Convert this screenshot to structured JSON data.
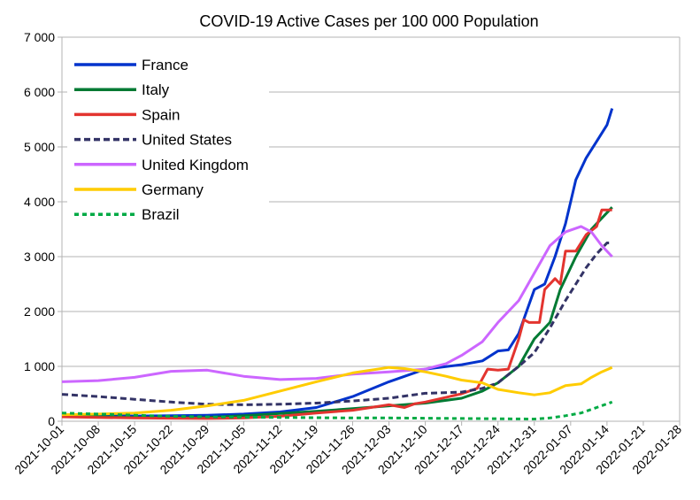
{
  "chart_data": {
    "type": "line",
    "title": "COVID-19 Active Cases per 100 000 Population",
    "xlabel": "",
    "ylabel": "",
    "ylim": [
      0,
      7000
    ],
    "yticks": [
      0,
      1000,
      2000,
      3000,
      4000,
      5000,
      6000,
      7000
    ],
    "ytick_labels": [
      "0",
      "1 000",
      "2 000",
      "3 000",
      "4 000",
      "5 000",
      "6 000",
      "7 000"
    ],
    "xlim": [
      "2021-10-01",
      "2022-01-28"
    ],
    "xtick_labels": [
      "2021-10-01",
      "2021-10-08",
      "2021-10-15",
      "2021-10-22",
      "2021-10-29",
      "2021-11-05",
      "2021-11-12",
      "2021-11-19",
      "2021-11-26",
      "2021-12-03",
      "2021-12-10",
      "2021-12-17",
      "2021-12-24",
      "2021-12-31",
      "2022-01-07",
      "2022-01-14",
      "2022-01-21",
      "2022-01-28"
    ],
    "grid": "horizontal",
    "legend": "top-left",
    "series": [
      {
        "name": "France",
        "color": "#0033cc",
        "style": "solid",
        "points": [
          [
            "2021-10-01",
            100
          ],
          [
            "2021-10-08",
            100
          ],
          [
            "2021-10-15",
            95
          ],
          [
            "2021-10-22",
            100
          ],
          [
            "2021-10-29",
            110
          ],
          [
            "2021-11-05",
            130
          ],
          [
            "2021-11-12",
            170
          ],
          [
            "2021-11-19",
            250
          ],
          [
            "2021-11-26",
            450
          ],
          [
            "2021-12-03",
            720
          ],
          [
            "2021-12-10",
            950
          ],
          [
            "2021-12-17",
            1030
          ],
          [
            "2021-12-21",
            1100
          ],
          [
            "2021-12-24",
            1280
          ],
          [
            "2021-12-26",
            1300
          ],
          [
            "2021-12-28",
            1600
          ],
          [
            "2021-12-31",
            2400
          ],
          [
            "2022-01-02",
            2500
          ],
          [
            "2022-01-04",
            3000
          ],
          [
            "2022-01-06",
            3600
          ],
          [
            "2022-01-08",
            4400
          ],
          [
            "2022-01-10",
            4800
          ],
          [
            "2022-01-12",
            5100
          ],
          [
            "2022-01-14",
            5400
          ],
          [
            "2022-01-15",
            5700
          ]
        ]
      },
      {
        "name": "Italy",
        "color": "#007a33",
        "style": "solid",
        "points": [
          [
            "2021-10-01",
            110
          ],
          [
            "2021-10-08",
            80
          ],
          [
            "2021-10-15",
            70
          ],
          [
            "2021-10-22",
            65
          ],
          [
            "2021-10-29",
            70
          ],
          [
            "2021-11-05",
            100
          ],
          [
            "2021-11-12",
            140
          ],
          [
            "2021-11-19",
            180
          ],
          [
            "2021-11-26",
            230
          ],
          [
            "2021-12-03",
            280
          ],
          [
            "2021-12-10",
            330
          ],
          [
            "2021-12-17",
            420
          ],
          [
            "2021-12-21",
            550
          ],
          [
            "2021-12-24",
            700
          ],
          [
            "2021-12-28",
            1000
          ],
          [
            "2021-12-31",
            1500
          ],
          [
            "2022-01-03",
            1800
          ],
          [
            "2022-01-05",
            2400
          ],
          [
            "2022-01-08",
            3000
          ],
          [
            "2022-01-11",
            3500
          ],
          [
            "2022-01-15",
            3900
          ]
        ]
      },
      {
        "name": "Spain",
        "color": "#e3342f",
        "style": "solid",
        "points": [
          [
            "2021-10-01",
            80
          ],
          [
            "2021-10-08",
            70
          ],
          [
            "2021-10-15",
            60
          ],
          [
            "2021-10-22",
            55
          ],
          [
            "2021-10-29",
            50
          ],
          [
            "2021-11-05",
            60
          ],
          [
            "2021-11-12",
            90
          ],
          [
            "2021-11-19",
            150
          ],
          [
            "2021-11-26",
            200
          ],
          [
            "2021-12-03",
            300
          ],
          [
            "2021-12-06",
            250
          ],
          [
            "2021-12-08",
            320
          ],
          [
            "2021-12-10",
            350
          ],
          [
            "2021-12-17",
            500
          ],
          [
            "2021-12-20",
            600
          ],
          [
            "2021-12-22",
            950
          ],
          [
            "2021-12-24",
            930
          ],
          [
            "2021-12-26",
            950
          ],
          [
            "2021-12-28",
            1500
          ],
          [
            "2021-12-29",
            1850
          ],
          [
            "2021-12-30",
            1800
          ],
          [
            "2022-01-01",
            1800
          ],
          [
            "2022-01-02",
            2400
          ],
          [
            "2022-01-04",
            2600
          ],
          [
            "2022-01-05",
            2500
          ],
          [
            "2022-01-06",
            3100
          ],
          [
            "2022-01-08",
            3100
          ],
          [
            "2022-01-10",
            3400
          ],
          [
            "2022-01-12",
            3550
          ],
          [
            "2022-01-13",
            3850
          ],
          [
            "2022-01-15",
            3850
          ]
        ]
      },
      {
        "name": "United States",
        "color": "#333366",
        "style": "dashed",
        "points": [
          [
            "2021-10-01",
            490
          ],
          [
            "2021-10-08",
            450
          ],
          [
            "2021-10-15",
            400
          ],
          [
            "2021-10-22",
            350
          ],
          [
            "2021-10-29",
            310
          ],
          [
            "2021-11-05",
            300
          ],
          [
            "2021-11-12",
            310
          ],
          [
            "2021-11-19",
            330
          ],
          [
            "2021-11-26",
            370
          ],
          [
            "2021-12-03",
            420
          ],
          [
            "2021-12-10",
            510
          ],
          [
            "2021-12-17",
            530
          ],
          [
            "2021-12-21",
            600
          ],
          [
            "2021-12-24",
            700
          ],
          [
            "2021-12-28",
            1000
          ],
          [
            "2021-12-31",
            1250
          ],
          [
            "2022-01-03",
            1700
          ],
          [
            "2022-01-06",
            2200
          ],
          [
            "2022-01-08",
            2500
          ],
          [
            "2022-01-10",
            2800
          ],
          [
            "2022-01-12",
            3050
          ],
          [
            "2022-01-14",
            3250
          ],
          [
            "2022-01-15",
            3250
          ]
        ]
      },
      {
        "name": "United Kingdom",
        "color": "#cc66ff",
        "style": "solid",
        "points": [
          [
            "2021-10-01",
            720
          ],
          [
            "2021-10-08",
            740
          ],
          [
            "2021-10-15",
            800
          ],
          [
            "2021-10-22",
            910
          ],
          [
            "2021-10-29",
            930
          ],
          [
            "2021-11-05",
            820
          ],
          [
            "2021-11-12",
            760
          ],
          [
            "2021-11-19",
            780
          ],
          [
            "2021-11-26",
            860
          ],
          [
            "2021-12-03",
            900
          ],
          [
            "2021-12-10",
            950
          ],
          [
            "2021-12-14",
            1050
          ],
          [
            "2021-12-17",
            1200
          ],
          [
            "2021-12-21",
            1450
          ],
          [
            "2021-12-24",
            1800
          ],
          [
            "2021-12-28",
            2200
          ],
          [
            "2021-12-31",
            2700
          ],
          [
            "2022-01-03",
            3200
          ],
          [
            "2022-01-06",
            3450
          ],
          [
            "2022-01-09",
            3550
          ],
          [
            "2022-01-11",
            3450
          ],
          [
            "2022-01-13",
            3200
          ],
          [
            "2022-01-15",
            3000
          ]
        ]
      },
      {
        "name": "Germany",
        "color": "#ffcc00",
        "style": "solid",
        "points": [
          [
            "2021-10-01",
            120
          ],
          [
            "2021-10-08",
            130
          ],
          [
            "2021-10-15",
            150
          ],
          [
            "2021-10-22",
            200
          ],
          [
            "2021-10-29",
            280
          ],
          [
            "2021-11-05",
            380
          ],
          [
            "2021-11-12",
            550
          ],
          [
            "2021-11-19",
            720
          ],
          [
            "2021-11-26",
            880
          ],
          [
            "2021-12-03",
            980
          ],
          [
            "2021-12-06",
            960
          ],
          [
            "2021-12-10",
            900
          ],
          [
            "2021-12-14",
            820
          ],
          [
            "2021-12-17",
            750
          ],
          [
            "2021-12-21",
            700
          ],
          [
            "2021-12-24",
            580
          ],
          [
            "2021-12-28",
            520
          ],
          [
            "2021-12-31",
            480
          ],
          [
            "2022-01-03",
            520
          ],
          [
            "2022-01-06",
            650
          ],
          [
            "2022-01-09",
            680
          ],
          [
            "2022-01-11",
            800
          ],
          [
            "2022-01-13",
            900
          ],
          [
            "2022-01-15",
            980
          ]
        ]
      },
      {
        "name": "Brazil",
        "color": "#00aa44",
        "style": "dotted",
        "points": [
          [
            "2021-10-01",
            150
          ],
          [
            "2021-10-08",
            130
          ],
          [
            "2021-10-15",
            110
          ],
          [
            "2021-10-22",
            90
          ],
          [
            "2021-10-29",
            80
          ],
          [
            "2021-11-05",
            75
          ],
          [
            "2021-11-12",
            70
          ],
          [
            "2021-11-19",
            65
          ],
          [
            "2021-11-26",
            60
          ],
          [
            "2021-12-03",
            60
          ],
          [
            "2021-12-10",
            55
          ],
          [
            "2021-12-17",
            50
          ],
          [
            "2021-12-24",
            45
          ],
          [
            "2021-12-31",
            40
          ],
          [
            "2022-01-03",
            60
          ],
          [
            "2022-01-06",
            100
          ],
          [
            "2022-01-09",
            150
          ],
          [
            "2022-01-12",
            250
          ],
          [
            "2022-01-15",
            350
          ]
        ]
      }
    ]
  }
}
